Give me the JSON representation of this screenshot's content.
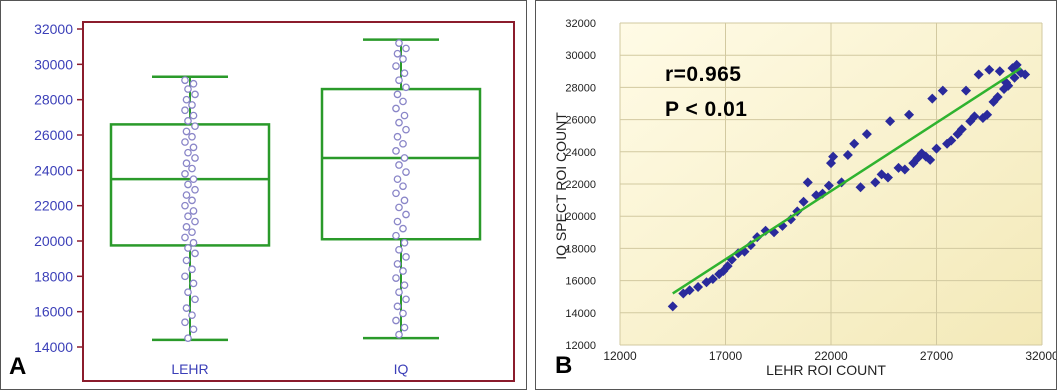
{
  "colors": {
    "frame_a": "#8b1c2c",
    "box": "#2a9a2a",
    "dot": "#8a86c8",
    "axis_text_a": "#3b3fb8",
    "plot_bg_b": "#fbf5d6",
    "grid_b": "#d2c9a0",
    "diamond": "#2a2a9c",
    "fit_line": "#2fb32f"
  },
  "chart_data": [
    {
      "panel_label": "A",
      "type": "box",
      "categories": [
        "LEHR",
        "IQ"
      ],
      "ylim": [
        14000,
        32000
      ],
      "yticks": [
        "14000",
        "16000",
        "18000",
        "20000",
        "22000",
        "24000",
        "26000",
        "28000",
        "30000",
        "32000"
      ],
      "boxes": [
        {
          "category": "LEHR",
          "min": 14400,
          "q1": 19750,
          "median": 23500,
          "q3": 26600,
          "max": 29300,
          "points": [
            14500,
            15000,
            15400,
            15800,
            16200,
            16700,
            17100,
            17600,
            18000,
            18400,
            18900,
            19300,
            19600,
            19900,
            20200,
            20500,
            20800,
            21100,
            21400,
            21700,
            22000,
            22300,
            22600,
            22900,
            23200,
            23500,
            23800,
            24100,
            24400,
            24700,
            25000,
            25300,
            25600,
            25900,
            26200,
            26500,
            26800,
            27100,
            27400,
            27700,
            28000,
            28300,
            28600,
            28900,
            29100
          ]
        },
        {
          "category": "IQ",
          "min": 14500,
          "q1": 20100,
          "median": 24700,
          "q3": 28600,
          "max": 31400,
          "points": [
            14700,
            15100,
            15500,
            15900,
            16300,
            16700,
            17100,
            17500,
            17900,
            18300,
            18700,
            19100,
            19500,
            19900,
            20300,
            20700,
            21100,
            21500,
            21900,
            22300,
            22700,
            23100,
            23500,
            23900,
            24300,
            24700,
            25100,
            25500,
            25900,
            26300,
            26700,
            27100,
            27500,
            27900,
            28300,
            28700,
            29100,
            29500,
            29900,
            30300,
            30600,
            30900,
            31200
          ]
        }
      ]
    },
    {
      "panel_label": "B",
      "type": "scatter",
      "xlabel": "LEHR ROI COUNT",
      "ylabel": "IQ SPECT ROI COUNT",
      "xlim": [
        12000,
        32000
      ],
      "ylim": [
        12000,
        32000
      ],
      "xticks": [
        "12000",
        "17000",
        "22000",
        "27000",
        "32000"
      ],
      "yticks": [
        "12000",
        "14000",
        "16000",
        "18000",
        "20000",
        "22000",
        "24000",
        "26000",
        "28000",
        "30000",
        "32000"
      ],
      "annotation_r": "r=0.965",
      "annotation_p": "P < 0.01",
      "fit_line": {
        "x": [
          14500,
          31000
        ],
        "y": [
          15200,
          29200
        ]
      },
      "points": [
        [
          14500,
          14400
        ],
        [
          15000,
          15200
        ],
        [
          15300,
          15400
        ],
        [
          15700,
          15600
        ],
        [
          16100,
          15900
        ],
        [
          16400,
          16100
        ],
        [
          16700,
          16400
        ],
        [
          16900,
          16600
        ],
        [
          17100,
          16900
        ],
        [
          17300,
          17300
        ],
        [
          17600,
          17700
        ],
        [
          17900,
          17800
        ],
        [
          18200,
          18200
        ],
        [
          18500,
          18700
        ],
        [
          18900,
          19100
        ],
        [
          19300,
          19000
        ],
        [
          19700,
          19400
        ],
        [
          20100,
          19800
        ],
        [
          20400,
          20300
        ],
        [
          20700,
          20900
        ],
        [
          20900,
          22100
        ],
        [
          21300,
          21300
        ],
        [
          21600,
          21400
        ],
        [
          21900,
          21900
        ],
        [
          22000,
          23300
        ],
        [
          22100,
          23700
        ],
        [
          22500,
          22100
        ],
        [
          22800,
          23800
        ],
        [
          23100,
          24500
        ],
        [
          23400,
          21800
        ],
        [
          23700,
          25100
        ],
        [
          24100,
          22100
        ],
        [
          24400,
          22600
        ],
        [
          24700,
          22400
        ],
        [
          24800,
          25900
        ],
        [
          25200,
          23000
        ],
        [
          25500,
          22900
        ],
        [
          25700,
          26300
        ],
        [
          25900,
          23300
        ],
        [
          26100,
          23600
        ],
        [
          26300,
          23900
        ],
        [
          26500,
          23700
        ],
        [
          26700,
          23500
        ],
        [
          26800,
          27300
        ],
        [
          27000,
          24200
        ],
        [
          27300,
          27800
        ],
        [
          27500,
          24500
        ],
        [
          27700,
          24700
        ],
        [
          28000,
          25100
        ],
        [
          28200,
          25400
        ],
        [
          28400,
          27800
        ],
        [
          28600,
          25900
        ],
        [
          28800,
          26200
        ],
        [
          29000,
          28800
        ],
        [
          29200,
          26100
        ],
        [
          29400,
          26300
        ],
        [
          29500,
          29100
        ],
        [
          29700,
          27100
        ],
        [
          29900,
          27400
        ],
        [
          30000,
          29000
        ],
        [
          30200,
          27900
        ],
        [
          30300,
          28300
        ],
        [
          30400,
          28100
        ],
        [
          30600,
          29200
        ],
        [
          30700,
          28600
        ],
        [
          30800,
          29400
        ],
        [
          31000,
          28900
        ],
        [
          31200,
          28800
        ]
      ]
    }
  ]
}
